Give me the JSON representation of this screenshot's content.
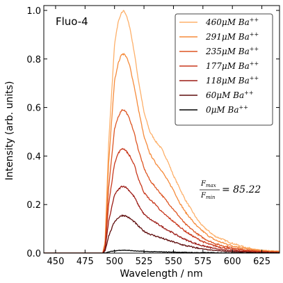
{
  "chart_data": {
    "type": "line",
    "title": "",
    "annotation_label": "Fluo-4",
    "xlabel": "Wavelength / nm",
    "ylabel": "Intensity (arb. units)",
    "xlim": [
      440,
      640
    ],
    "ylim": [
      0.0,
      1.02
    ],
    "x_ticks": [
      450,
      475,
      500,
      525,
      550,
      575,
      600,
      625
    ],
    "x_tick_labels": [
      "450",
      "475",
      "500",
      "525",
      "550",
      "575",
      "600",
      "625"
    ],
    "y_ticks": [
      0.0,
      0.2,
      0.4,
      0.6,
      0.8,
      1.0
    ],
    "y_tick_labels": [
      "0.0",
      "0.2",
      "0.4",
      "0.6",
      "0.8",
      "1.0"
    ],
    "grid": false,
    "legend_position": "top-right",
    "ratio_annotation": {
      "numerator": "F_max",
      "denominator": "F_min",
      "value": "= 85.22"
    },
    "series": [
      {
        "name": "460μM Ba++",
        "conc": "460",
        "color": "#fdb06a",
        "points": [
          [
            440,
            0.0
          ],
          [
            490,
            0.0
          ],
          [
            492,
            0.05
          ],
          [
            495,
            0.45
          ],
          [
            500,
            0.86
          ],
          [
            503,
            0.95
          ],
          [
            506,
            0.99
          ],
          [
            508,
            1.0
          ],
          [
            510,
            0.98
          ],
          [
            513,
            0.93
          ],
          [
            517,
            0.82
          ],
          [
            520,
            0.72
          ],
          [
            525,
            0.58
          ],
          [
            530,
            0.5
          ],
          [
            535,
            0.46
          ],
          [
            540,
            0.43
          ],
          [
            545,
            0.38
          ],
          [
            550,
            0.32
          ],
          [
            555,
            0.27
          ],
          [
            560,
            0.22
          ],
          [
            565,
            0.18
          ],
          [
            570,
            0.14
          ],
          [
            575,
            0.11
          ],
          [
            580,
            0.09
          ],
          [
            585,
            0.07
          ],
          [
            590,
            0.06
          ],
          [
            600,
            0.04
          ],
          [
            610,
            0.025
          ],
          [
            620,
            0.015
          ],
          [
            630,
            0.01
          ],
          [
            640,
            0.008
          ]
        ]
      },
      {
        "name": "291μM Ba++",
        "conc": "291",
        "color": "#f58a3a",
        "points": [
          [
            440,
            0.0
          ],
          [
            490,
            0.0
          ],
          [
            492,
            0.04
          ],
          [
            495,
            0.37
          ],
          [
            500,
            0.71
          ],
          [
            503,
            0.78
          ],
          [
            506,
            0.82
          ],
          [
            508,
            0.82
          ],
          [
            510,
            0.81
          ],
          [
            513,
            0.77
          ],
          [
            517,
            0.68
          ],
          [
            520,
            0.6
          ],
          [
            525,
            0.48
          ],
          [
            530,
            0.41
          ],
          [
            535,
            0.37
          ],
          [
            540,
            0.34
          ],
          [
            545,
            0.3
          ],
          [
            550,
            0.26
          ],
          [
            555,
            0.21
          ],
          [
            560,
            0.17
          ],
          [
            565,
            0.14
          ],
          [
            570,
            0.11
          ],
          [
            575,
            0.09
          ],
          [
            580,
            0.07
          ],
          [
            585,
            0.055
          ],
          [
            590,
            0.045
          ],
          [
            600,
            0.03
          ],
          [
            610,
            0.02
          ],
          [
            620,
            0.012
          ],
          [
            630,
            0.008
          ],
          [
            640,
            0.006
          ]
        ]
      },
      {
        "name": "235μM Ba++",
        "conc": "235",
        "color": "#dd5522",
        "points": [
          [
            440,
            0.0
          ],
          [
            490,
            0.0
          ],
          [
            492,
            0.03
          ],
          [
            495,
            0.27
          ],
          [
            500,
            0.51
          ],
          [
            503,
            0.56
          ],
          [
            506,
            0.59
          ],
          [
            508,
            0.59
          ],
          [
            510,
            0.58
          ],
          [
            513,
            0.55
          ],
          [
            517,
            0.49
          ],
          [
            520,
            0.43
          ],
          [
            525,
            0.35
          ],
          [
            530,
            0.3
          ],
          [
            535,
            0.27
          ],
          [
            540,
            0.24
          ],
          [
            545,
            0.21
          ],
          [
            550,
            0.18
          ],
          [
            555,
            0.15
          ],
          [
            560,
            0.12
          ],
          [
            565,
            0.1
          ],
          [
            570,
            0.08
          ],
          [
            575,
            0.063
          ],
          [
            580,
            0.05
          ],
          [
            585,
            0.04
          ],
          [
            590,
            0.032
          ],
          [
            600,
            0.022
          ],
          [
            610,
            0.014
          ],
          [
            620,
            0.009
          ],
          [
            630,
            0.006
          ],
          [
            640,
            0.004
          ]
        ]
      },
      {
        "name": "177μM Ba++",
        "conc": "177",
        "color": "#c8371b",
        "points": [
          [
            440,
            0.0
          ],
          [
            490,
            0.0
          ],
          [
            492,
            0.02
          ],
          [
            495,
            0.2
          ],
          [
            500,
            0.37
          ],
          [
            503,
            0.41
          ],
          [
            506,
            0.43
          ],
          [
            508,
            0.43
          ],
          [
            510,
            0.42
          ],
          [
            513,
            0.4
          ],
          [
            517,
            0.36
          ],
          [
            520,
            0.31
          ],
          [
            525,
            0.25
          ],
          [
            530,
            0.22
          ],
          [
            535,
            0.2
          ],
          [
            540,
            0.17
          ],
          [
            545,
            0.15
          ],
          [
            550,
            0.13
          ],
          [
            555,
            0.11
          ],
          [
            560,
            0.09
          ],
          [
            565,
            0.074
          ],
          [
            570,
            0.06
          ],
          [
            575,
            0.047
          ],
          [
            580,
            0.037
          ],
          [
            585,
            0.03
          ],
          [
            590,
            0.024
          ],
          [
            600,
            0.016
          ],
          [
            610,
            0.01
          ],
          [
            620,
            0.007
          ],
          [
            630,
            0.005
          ],
          [
            640,
            0.003
          ]
        ]
      },
      {
        "name": "118μM Ba++",
        "conc": "118",
        "color": "#9b1a14",
        "points": [
          [
            440,
            0.0
          ],
          [
            490,
            0.0
          ],
          [
            492,
            0.015
          ],
          [
            495,
            0.13
          ],
          [
            500,
            0.24
          ],
          [
            503,
            0.26
          ],
          [
            506,
            0.275
          ],
          [
            508,
            0.275
          ],
          [
            510,
            0.27
          ],
          [
            513,
            0.255
          ],
          [
            517,
            0.23
          ],
          [
            520,
            0.2
          ],
          [
            525,
            0.16
          ],
          [
            530,
            0.14
          ],
          [
            535,
            0.125
          ],
          [
            540,
            0.11
          ],
          [
            545,
            0.095
          ],
          [
            550,
            0.082
          ],
          [
            555,
            0.068
          ],
          [
            560,
            0.056
          ],
          [
            565,
            0.046
          ],
          [
            570,
            0.037
          ],
          [
            575,
            0.03
          ],
          [
            580,
            0.024
          ],
          [
            585,
            0.019
          ],
          [
            590,
            0.015
          ],
          [
            600,
            0.01
          ],
          [
            610,
            0.007
          ],
          [
            620,
            0.004
          ],
          [
            630,
            0.003
          ],
          [
            640,
            0.002
          ]
        ]
      },
      {
        "name": "60μM Ba++",
        "conc": "60",
        "color": "#5e0c0c",
        "points": [
          [
            440,
            0.0
          ],
          [
            490,
            0.0
          ],
          [
            492,
            0.01
          ],
          [
            495,
            0.07
          ],
          [
            500,
            0.13
          ],
          [
            503,
            0.145
          ],
          [
            506,
            0.155
          ],
          [
            508,
            0.155
          ],
          [
            510,
            0.152
          ],
          [
            513,
            0.143
          ],
          [
            517,
            0.128
          ],
          [
            520,
            0.112
          ],
          [
            525,
            0.09
          ],
          [
            530,
            0.078
          ],
          [
            535,
            0.07
          ],
          [
            540,
            0.062
          ],
          [
            545,
            0.053
          ],
          [
            550,
            0.046
          ],
          [
            555,
            0.038
          ],
          [
            560,
            0.031
          ],
          [
            565,
            0.026
          ],
          [
            570,
            0.021
          ],
          [
            575,
            0.017
          ],
          [
            580,
            0.013
          ],
          [
            585,
            0.011
          ],
          [
            590,
            0.009
          ],
          [
            600,
            0.006
          ],
          [
            610,
            0.004
          ],
          [
            620,
            0.002
          ],
          [
            630,
            0.002
          ],
          [
            640,
            0.001
          ]
        ]
      },
      {
        "name": "0μM Ba++",
        "conc": "0",
        "color": "#000000",
        "points": [
          [
            440,
            0.0
          ],
          [
            490,
            0.0
          ],
          [
            492,
            0.001
          ],
          [
            495,
            0.005
          ],
          [
            500,
            0.009
          ],
          [
            505,
            0.012
          ],
          [
            508,
            0.012
          ],
          [
            512,
            0.011
          ],
          [
            520,
            0.008
          ],
          [
            530,
            0.006
          ],
          [
            540,
            0.005
          ],
          [
            550,
            0.004
          ],
          [
            560,
            0.003
          ],
          [
            570,
            0.002
          ],
          [
            580,
            0.002
          ],
          [
            600,
            0.001
          ],
          [
            620,
            0.001
          ],
          [
            640,
            0.0
          ]
        ]
      }
    ]
  }
}
